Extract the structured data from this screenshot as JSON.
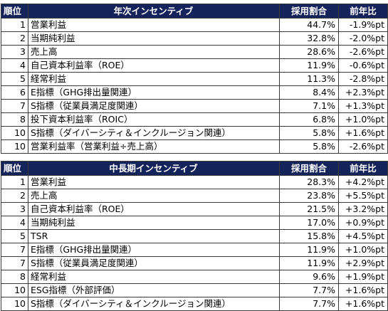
{
  "tables": [
    {
      "headers": {
        "rank": "順位",
        "item": "年次インセンティブ",
        "rate": "採用割合",
        "yoy": "前年比"
      },
      "rows": [
        {
          "rank": "1",
          "item": "営業利益",
          "rate": "44.7%",
          "yoy": "-1.9%pt"
        },
        {
          "rank": "2",
          "item": "当期純利益",
          "rate": "32.8%",
          "yoy": "-2.0%pt"
        },
        {
          "rank": "3",
          "item": "売上高",
          "rate": "28.6%",
          "yoy": "-2.6%pt"
        },
        {
          "rank": "4",
          "item": "自己資本利益率（ROE）",
          "rate": "11.9%",
          "yoy": "-0.6%pt"
        },
        {
          "rank": "5",
          "item": "経常利益",
          "rate": "11.3%",
          "yoy": "-2.8%pt"
        },
        {
          "rank": "6",
          "item": "E指標（GHG排出量関連）",
          "rate": "8.4%",
          "yoy": "+2.3%pt"
        },
        {
          "rank": "7",
          "item": "S指標（従業員満足度関連）",
          "rate": "7.1%",
          "yoy": "+1.3%pt"
        },
        {
          "rank": "8",
          "item": "投下資本利益率（ROIC）",
          "rate": "6.8%",
          "yoy": "+1.0%pt"
        },
        {
          "rank": "10",
          "item": "S指標（ダイバーシティ＆インクルージョン関連）",
          "rate": "5.8%",
          "yoy": "+1.6%pt"
        },
        {
          "rank": "10",
          "item": "営業利益率（営業利益÷売上高）",
          "rate": "5.8%",
          "yoy": "-2.6%pt"
        }
      ]
    },
    {
      "headers": {
        "rank": "順位",
        "item": "中長期インセンティブ",
        "rate": "採用割合",
        "yoy": "前年比"
      },
      "rows": [
        {
          "rank": "1",
          "item": "営業利益",
          "rate": "28.3%",
          "yoy": "+4.2%pt"
        },
        {
          "rank": "2",
          "item": "売上高",
          "rate": "23.8%",
          "yoy": "+5.5%pt"
        },
        {
          "rank": "3",
          "item": "自己資本利益率（ROE）",
          "rate": "21.5%",
          "yoy": "+3.2%pt"
        },
        {
          "rank": "4",
          "item": "当期純利益",
          "rate": "17.0%",
          "yoy": "+0.9%pt"
        },
        {
          "rank": "5",
          "item": "TSR",
          "rate": "15.8%",
          "yoy": "+4.5%pt"
        },
        {
          "rank": "7",
          "item": "E指標（GHG排出量関連）",
          "rate": "11.9%",
          "yoy": "+1.0%pt"
        },
        {
          "rank": "7",
          "item": "S指標（従業員満足度関連）",
          "rate": "11.9%",
          "yoy": "+2.9%pt"
        },
        {
          "rank": "8",
          "item": "経常利益",
          "rate": "9.6%",
          "yoy": "+1.9%pt"
        },
        {
          "rank": "10",
          "item": "ESG指標（外部評価）",
          "rate": "7.7%",
          "yoy": "+1.6%pt"
        },
        {
          "rank": "10",
          "item": "S指標（ダイバーシティ＆インクルージョン関連）",
          "rate": "7.7%",
          "yoy": "+1.6%pt"
        }
      ]
    }
  ]
}
